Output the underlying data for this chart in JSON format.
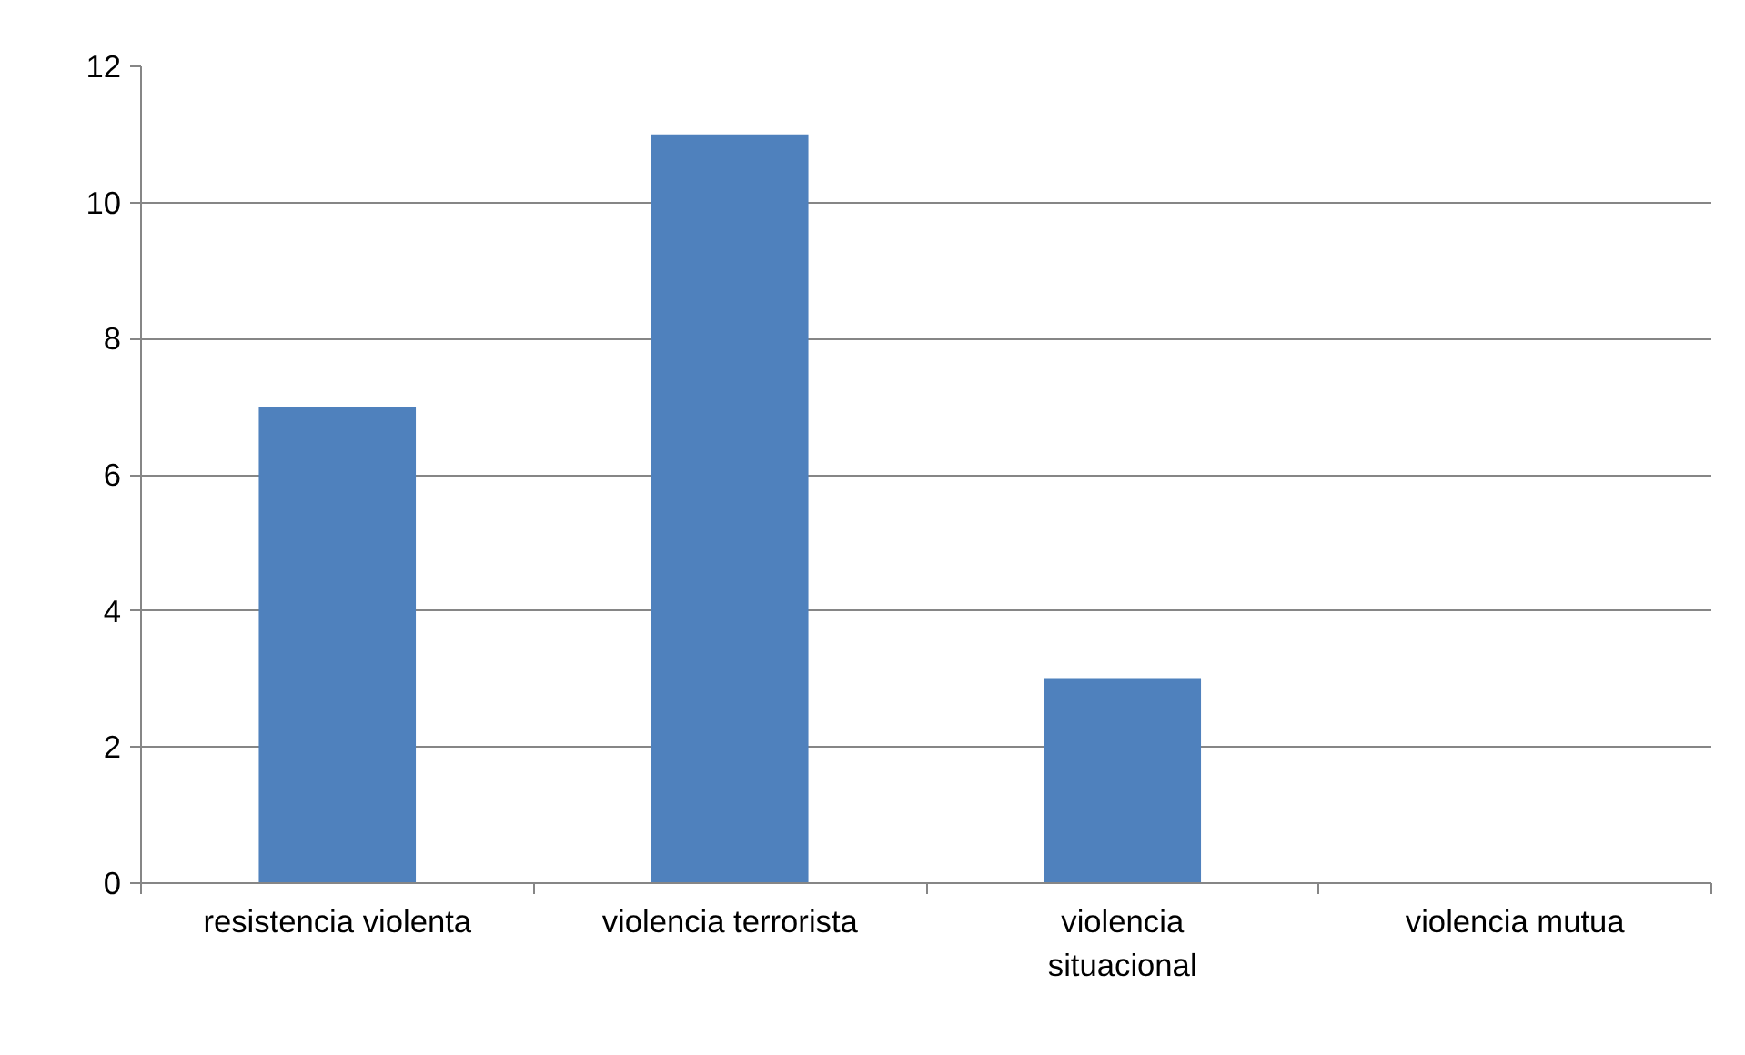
{
  "chart_data": {
    "type": "bar",
    "categories": [
      "resistencia violenta",
      "violencia terrorista",
      "violencia situacional",
      "violencia mutua"
    ],
    "values": [
      7,
      11,
      3,
      0
    ],
    "color": "#4f81bd",
    "ylim": [
      0,
      12
    ],
    "yticks": [
      0,
      2,
      4,
      6,
      8,
      10,
      12
    ],
    "grid": "y"
  }
}
